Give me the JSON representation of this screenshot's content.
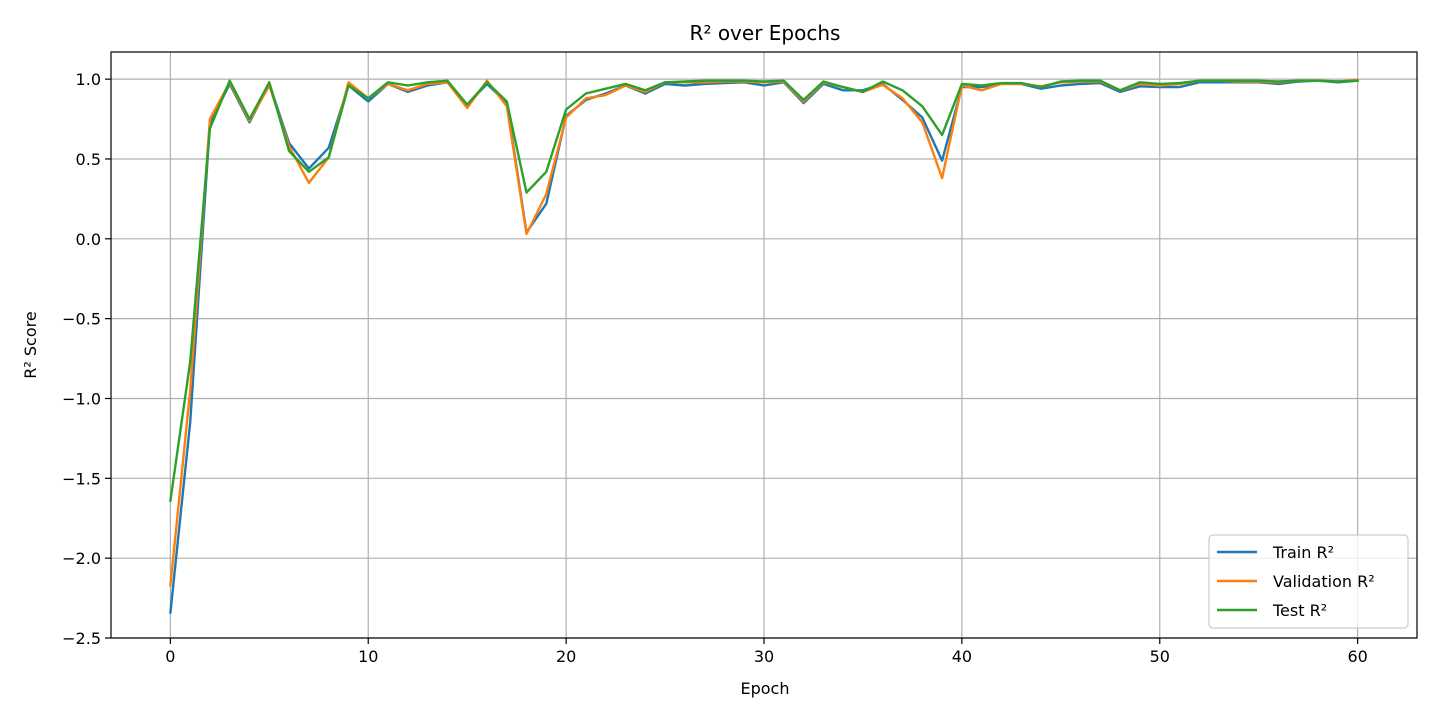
{
  "chart_data": {
    "type": "line",
    "title": "R² over Epochs",
    "xlabel": "Epoch",
    "ylabel": "R² Score",
    "xlim": [
      -3,
      63
    ],
    "ylim": [
      -2.5,
      1.17
    ],
    "xticks": [
      0,
      10,
      20,
      30,
      40,
      50,
      60
    ],
    "xtick_labels": [
      "0",
      "10",
      "20",
      "30",
      "40",
      "50",
      "60"
    ],
    "yticks": [
      -2.5,
      -2.0,
      -1.5,
      -1.0,
      -0.5,
      0.0,
      0.5,
      1.0
    ],
    "ytick_labels": [
      "−2.5",
      "−2.0",
      "−1.5",
      "−1.0",
      "−0.5",
      "0.0",
      "0.5",
      "1.0"
    ],
    "grid": true,
    "legend_position": "bottom-right",
    "x": [
      0,
      1,
      2,
      3,
      4,
      5,
      6,
      7,
      8,
      9,
      10,
      11,
      12,
      13,
      14,
      15,
      16,
      17,
      18,
      19,
      20,
      21,
      22,
      23,
      24,
      25,
      26,
      27,
      28,
      29,
      30,
      31,
      32,
      33,
      34,
      35,
      36,
      37,
      38,
      39,
      40,
      41,
      42,
      43,
      44,
      45,
      46,
      47,
      48,
      49,
      50,
      51,
      52,
      53,
      54,
      55,
      56,
      57,
      58,
      59,
      60
    ],
    "series": [
      {
        "name": "Train R²",
        "color": "#1f77b4",
        "values": [
          -2.34,
          -1.15,
          0.72,
          0.97,
          0.73,
          0.97,
          0.6,
          0.44,
          0.57,
          0.96,
          0.86,
          0.97,
          0.92,
          0.96,
          0.98,
          0.84,
          0.97,
          0.85,
          0.04,
          0.22,
          0.77,
          0.87,
          0.91,
          0.96,
          0.91,
          0.97,
          0.96,
          0.97,
          0.975,
          0.98,
          0.96,
          0.98,
          0.85,
          0.97,
          0.93,
          0.93,
          0.97,
          0.87,
          0.76,
          0.49,
          0.95,
          0.95,
          0.97,
          0.97,
          0.94,
          0.96,
          0.97,
          0.975,
          0.92,
          0.955,
          0.95,
          0.95,
          0.98,
          0.98,
          0.98,
          0.98,
          0.97,
          0.985,
          0.99,
          0.98,
          0.99
        ]
      },
      {
        "name": "Validation R²",
        "color": "#ff7f0e",
        "values": [
          -2.17,
          -0.95,
          0.75,
          0.98,
          0.74,
          0.96,
          0.58,
          0.35,
          0.51,
          0.98,
          0.88,
          0.97,
          0.93,
          0.97,
          0.98,
          0.82,
          0.99,
          0.83,
          0.03,
          0.28,
          0.76,
          0.88,
          0.9,
          0.96,
          0.92,
          0.98,
          0.98,
          0.98,
          0.985,
          0.985,
          0.98,
          0.985,
          0.86,
          0.98,
          0.95,
          0.92,
          0.965,
          0.88,
          0.73,
          0.38,
          0.96,
          0.93,
          0.97,
          0.97,
          0.955,
          0.98,
          0.985,
          0.985,
          0.93,
          0.97,
          0.96,
          0.97,
          0.99,
          0.99,
          0.985,
          0.985,
          0.98,
          0.99,
          0.99,
          0.985,
          0.995
        ]
      },
      {
        "name": "Test R²",
        "color": "#2ca02c",
        "values": [
          -1.64,
          -0.77,
          0.69,
          0.99,
          0.75,
          0.98,
          0.55,
          0.42,
          0.51,
          0.96,
          0.88,
          0.98,
          0.96,
          0.98,
          0.99,
          0.84,
          0.98,
          0.86,
          0.29,
          0.42,
          0.81,
          0.91,
          0.94,
          0.97,
          0.93,
          0.98,
          0.985,
          0.99,
          0.99,
          0.99,
          0.985,
          0.99,
          0.87,
          0.985,
          0.95,
          0.92,
          0.985,
          0.93,
          0.83,
          0.65,
          0.97,
          0.96,
          0.975,
          0.975,
          0.95,
          0.985,
          0.99,
          0.99,
          0.93,
          0.98,
          0.97,
          0.975,
          0.99,
          0.99,
          0.99,
          0.99,
          0.985,
          0.99,
          0.99,
          0.985,
          0.99
        ]
      }
    ]
  }
}
